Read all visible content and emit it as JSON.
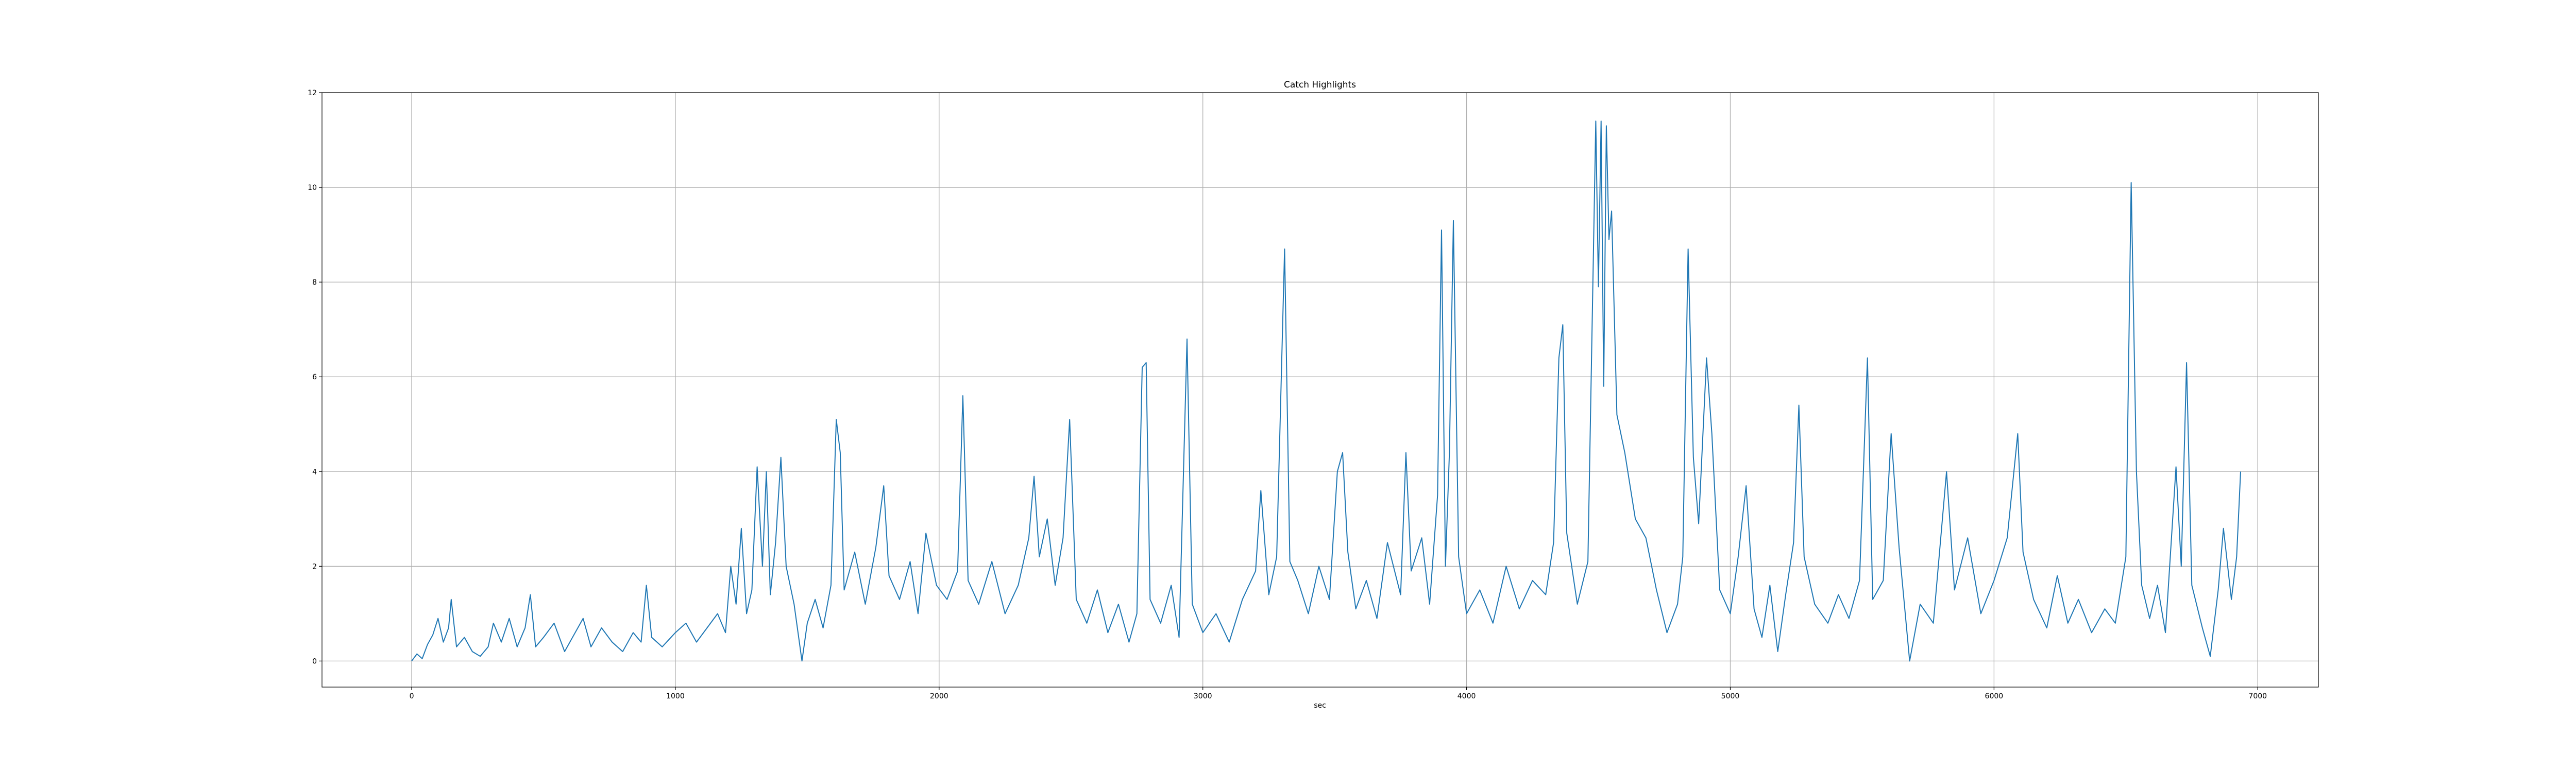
{
  "chart_data": {
    "type": "line",
    "title": "Catch Highlights",
    "xlabel": "sec",
    "ylabel": "",
    "xlim": [
      -340,
      7230
    ],
    "ylim": [
      -0.55,
      12
    ],
    "xticks": [
      0,
      1000,
      2000,
      3000,
      4000,
      5000,
      6000,
      7000
    ],
    "yticks": [
      0,
      2,
      4,
      6,
      8,
      10,
      12
    ],
    "grid": true,
    "series": [
      {
        "color": "#1f77b4",
        "points": [
          [
            0,
            0.0
          ],
          [
            20,
            0.15
          ],
          [
            40,
            0.05
          ],
          [
            60,
            0.35
          ],
          [
            80,
            0.55
          ],
          [
            100,
            0.9
          ],
          [
            120,
            0.4
          ],
          [
            140,
            0.7
          ],
          [
            150,
            1.3
          ],
          [
            170,
            0.3
          ],
          [
            200,
            0.5
          ],
          [
            230,
            0.2
          ],
          [
            260,
            0.1
          ],
          [
            290,
            0.3
          ],
          [
            310,
            0.8
          ],
          [
            340,
            0.4
          ],
          [
            370,
            0.9
          ],
          [
            400,
            0.3
          ],
          [
            430,
            0.7
          ],
          [
            450,
            1.4
          ],
          [
            470,
            0.3
          ],
          [
            500,
            0.5
          ],
          [
            540,
            0.8
          ],
          [
            580,
            0.2
          ],
          [
            620,
            0.6
          ],
          [
            650,
            0.9
          ],
          [
            680,
            0.3
          ],
          [
            720,
            0.7
          ],
          [
            760,
            0.4
          ],
          [
            800,
            0.2
          ],
          [
            840,
            0.6
          ],
          [
            870,
            0.4
          ],
          [
            890,
            1.6
          ],
          [
            910,
            0.5
          ],
          [
            950,
            0.3
          ],
          [
            1000,
            0.6
          ],
          [
            1040,
            0.8
          ],
          [
            1080,
            0.4
          ],
          [
            1120,
            0.7
          ],
          [
            1160,
            1.0
          ],
          [
            1190,
            0.6
          ],
          [
            1210,
            2.0
          ],
          [
            1230,
            1.2
          ],
          [
            1250,
            2.8
          ],
          [
            1270,
            1.0
          ],
          [
            1290,
            1.5
          ],
          [
            1310,
            4.1
          ],
          [
            1330,
            2.0
          ],
          [
            1345,
            4.0
          ],
          [
            1360,
            1.4
          ],
          [
            1380,
            2.5
          ],
          [
            1400,
            4.3
          ],
          [
            1420,
            2.0
          ],
          [
            1450,
            1.2
          ],
          [
            1480,
            0.0
          ],
          [
            1500,
            0.8
          ],
          [
            1530,
            1.3
          ],
          [
            1560,
            0.7
          ],
          [
            1590,
            1.6
          ],
          [
            1610,
            5.1
          ],
          [
            1625,
            4.4
          ],
          [
            1640,
            1.5
          ],
          [
            1680,
            2.3
          ],
          [
            1720,
            1.2
          ],
          [
            1760,
            2.4
          ],
          [
            1790,
            3.7
          ],
          [
            1810,
            1.8
          ],
          [
            1850,
            1.3
          ],
          [
            1890,
            2.1
          ],
          [
            1920,
            1.0
          ],
          [
            1950,
            2.7
          ],
          [
            1990,
            1.6
          ],
          [
            2030,
            1.3
          ],
          [
            2070,
            1.9
          ],
          [
            2090,
            5.6
          ],
          [
            2110,
            1.7
          ],
          [
            2150,
            1.2
          ],
          [
            2200,
            2.1
          ],
          [
            2250,
            1.0
          ],
          [
            2300,
            1.6
          ],
          [
            2340,
            2.6
          ],
          [
            2360,
            3.9
          ],
          [
            2380,
            2.2
          ],
          [
            2410,
            3.0
          ],
          [
            2440,
            1.6
          ],
          [
            2470,
            2.6
          ],
          [
            2495,
            5.1
          ],
          [
            2520,
            1.3
          ],
          [
            2560,
            0.8
          ],
          [
            2600,
            1.5
          ],
          [
            2640,
            0.6
          ],
          [
            2680,
            1.2
          ],
          [
            2720,
            0.4
          ],
          [
            2750,
            1.0
          ],
          [
            2770,
            6.2
          ],
          [
            2785,
            6.3
          ],
          [
            2800,
            1.3
          ],
          [
            2840,
            0.8
          ],
          [
            2880,
            1.6
          ],
          [
            2910,
            0.5
          ],
          [
            2940,
            6.8
          ],
          [
            2960,
            1.2
          ],
          [
            3000,
            0.6
          ],
          [
            3050,
            1.0
          ],
          [
            3100,
            0.4
          ],
          [
            3150,
            1.3
          ],
          [
            3200,
            1.9
          ],
          [
            3220,
            3.6
          ],
          [
            3250,
            1.4
          ],
          [
            3280,
            2.2
          ],
          [
            3310,
            8.7
          ],
          [
            3330,
            2.1
          ],
          [
            3360,
            1.7
          ],
          [
            3400,
            1.0
          ],
          [
            3440,
            2.0
          ],
          [
            3480,
            1.3
          ],
          [
            3510,
            4.0
          ],
          [
            3530,
            4.4
          ],
          [
            3550,
            2.3
          ],
          [
            3580,
            1.1
          ],
          [
            3620,
            1.7
          ],
          [
            3660,
            0.9
          ],
          [
            3700,
            2.5
          ],
          [
            3750,
            1.4
          ],
          [
            3770,
            4.4
          ],
          [
            3790,
            1.9
          ],
          [
            3830,
            2.6
          ],
          [
            3860,
            1.2
          ],
          [
            3890,
            3.5
          ],
          [
            3905,
            9.1
          ],
          [
            3920,
            2.0
          ],
          [
            3935,
            4.4
          ],
          [
            3950,
            9.3
          ],
          [
            3970,
            2.2
          ],
          [
            4000,
            1.0
          ],
          [
            4050,
            1.5
          ],
          [
            4100,
            0.8
          ],
          [
            4150,
            2.0
          ],
          [
            4200,
            1.1
          ],
          [
            4250,
            1.7
          ],
          [
            4300,
            1.4
          ],
          [
            4330,
            2.5
          ],
          [
            4350,
            6.4
          ],
          [
            4365,
            7.1
          ],
          [
            4380,
            2.7
          ],
          [
            4420,
            1.2
          ],
          [
            4460,
            2.1
          ],
          [
            4490,
            11.4
          ],
          [
            4500,
            7.9
          ],
          [
            4510,
            11.4
          ],
          [
            4520,
            5.8
          ],
          [
            4530,
            11.3
          ],
          [
            4540,
            8.9
          ],
          [
            4550,
            9.5
          ],
          [
            4570,
            5.2
          ],
          [
            4600,
            4.4
          ],
          [
            4640,
            3.0
          ],
          [
            4680,
            2.6
          ],
          [
            4720,
            1.5
          ],
          [
            4760,
            0.6
          ],
          [
            4800,
            1.2
          ],
          [
            4820,
            2.2
          ],
          [
            4840,
            8.7
          ],
          [
            4860,
            4.3
          ],
          [
            4880,
            2.9
          ],
          [
            4910,
            6.4
          ],
          [
            4930,
            4.8
          ],
          [
            4960,
            1.5
          ],
          [
            5000,
            1.0
          ],
          [
            5030,
            2.2
          ],
          [
            5060,
            3.7
          ],
          [
            5090,
            1.1
          ],
          [
            5120,
            0.5
          ],
          [
            5150,
            1.6
          ],
          [
            5180,
            0.2
          ],
          [
            5210,
            1.4
          ],
          [
            5240,
            2.5
          ],
          [
            5260,
            5.4
          ],
          [
            5280,
            2.2
          ],
          [
            5320,
            1.2
          ],
          [
            5370,
            0.8
          ],
          [
            5410,
            1.4
          ],
          [
            5450,
            0.9
          ],
          [
            5490,
            1.7
          ],
          [
            5520,
            6.4
          ],
          [
            5540,
            1.3
          ],
          [
            5580,
            1.7
          ],
          [
            5610,
            4.8
          ],
          [
            5640,
            2.4
          ],
          [
            5680,
            0.0
          ],
          [
            5720,
            1.2
          ],
          [
            5770,
            0.8
          ],
          [
            5820,
            4.0
          ],
          [
            5850,
            1.5
          ],
          [
            5900,
            2.6
          ],
          [
            5950,
            1.0
          ],
          [
            6000,
            1.7
          ],
          [
            6050,
            2.6
          ],
          [
            6090,
            4.8
          ],
          [
            6110,
            2.3
          ],
          [
            6150,
            1.3
          ],
          [
            6200,
            0.7
          ],
          [
            6240,
            1.8
          ],
          [
            6280,
            0.8
          ],
          [
            6320,
            1.3
          ],
          [
            6370,
            0.6
          ],
          [
            6420,
            1.1
          ],
          [
            6460,
            0.8
          ],
          [
            6500,
            2.2
          ],
          [
            6520,
            10.1
          ],
          [
            6540,
            4.0
          ],
          [
            6560,
            1.6
          ],
          [
            6590,
            0.9
          ],
          [
            6620,
            1.6
          ],
          [
            6650,
            0.6
          ],
          [
            6690,
            4.1
          ],
          [
            6710,
            2.0
          ],
          [
            6730,
            6.3
          ],
          [
            6750,
            1.6
          ],
          [
            6790,
            0.7
          ],
          [
            6820,
            0.1
          ],
          [
            6850,
            1.5
          ],
          [
            6870,
            2.8
          ],
          [
            6900,
            1.3
          ],
          [
            6920,
            2.2
          ],
          [
            6935,
            4.0
          ]
        ]
      }
    ]
  }
}
